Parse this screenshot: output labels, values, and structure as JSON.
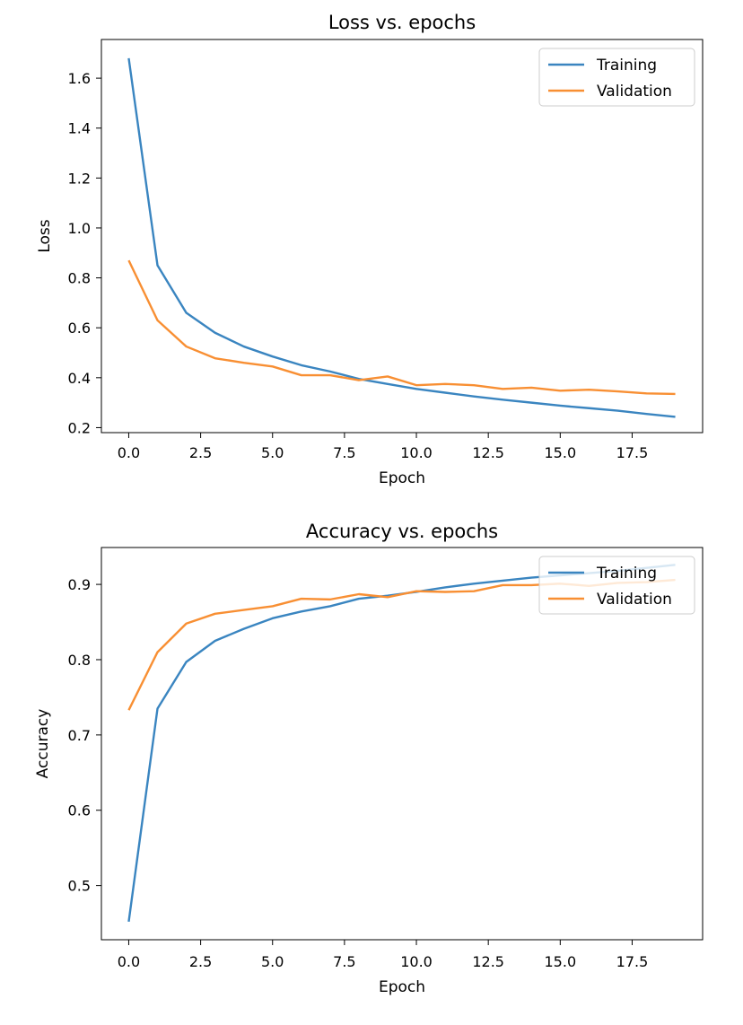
{
  "colors": {
    "training": "#3a85c0",
    "validation": "#f88f33"
  },
  "chart_data": [
    {
      "type": "line",
      "title": "Loss vs. epochs",
      "xlabel": "Epoch",
      "ylabel": "Loss",
      "xlim": [
        -0.95,
        19.95
      ],
      "ylim": [
        0.18,
        1.755
      ],
      "xticks": [
        0,
        2.5,
        5,
        7.5,
        10,
        12.5,
        15,
        17.5
      ],
      "xtick_labels": [
        "0.0",
        "2.5",
        "5.0",
        "7.5",
        "10.0",
        "12.5",
        "15.0",
        "17.5"
      ],
      "yticks": [
        0.2,
        0.4,
        0.6,
        0.8,
        1.0,
        1.2,
        1.4,
        1.6
      ],
      "ytick_labels": [
        "0.2",
        "0.4",
        "0.6",
        "0.8",
        "1.0",
        "1.2",
        "1.4",
        "1.6"
      ],
      "grid": false,
      "legend_position": "upper right",
      "x": [
        0,
        1,
        2,
        3,
        4,
        5,
        6,
        7,
        8,
        9,
        10,
        11,
        12,
        13,
        14,
        15,
        16,
        17,
        18,
        19
      ],
      "series": [
        {
          "name": "Training",
          "color_key": "training",
          "values": [
            1.68,
            0.85,
            0.66,
            0.58,
            0.525,
            0.485,
            0.45,
            0.425,
            0.395,
            0.375,
            0.355,
            0.34,
            0.325,
            0.312,
            0.3,
            0.288,
            0.278,
            0.268,
            0.255,
            0.243
          ]
        },
        {
          "name": "Validation",
          "color_key": "validation",
          "values": [
            0.87,
            0.63,
            0.525,
            0.478,
            0.46,
            0.445,
            0.41,
            0.41,
            0.39,
            0.405,
            0.37,
            0.375,
            0.37,
            0.355,
            0.36,
            0.348,
            0.352,
            0.345,
            0.337,
            0.335
          ]
        }
      ]
    },
    {
      "type": "line",
      "title": "Accuracy vs. epochs",
      "xlabel": "Epoch",
      "ylabel": "Accuracy",
      "xlim": [
        -0.95,
        19.95
      ],
      "ylim": [
        0.428,
        0.949
      ],
      "xticks": [
        0,
        2.5,
        5,
        7.5,
        10,
        12.5,
        15,
        17.5
      ],
      "xtick_labels": [
        "0.0",
        "2.5",
        "5.0",
        "7.5",
        "10.0",
        "12.5",
        "15.0",
        "17.5"
      ],
      "yticks": [
        0.5,
        0.6,
        0.7,
        0.8,
        0.9
      ],
      "ytick_labels": [
        "0.5",
        "0.6",
        "0.7",
        "0.8",
        "0.9"
      ],
      "grid": false,
      "legend_position": "upper right",
      "x": [
        0,
        1,
        2,
        3,
        4,
        5,
        6,
        7,
        8,
        9,
        10,
        11,
        12,
        13,
        14,
        15,
        16,
        17,
        18,
        19
      ],
      "series": [
        {
          "name": "Training",
          "color_key": "training",
          "values": [
            0.452,
            0.735,
            0.797,
            0.825,
            0.841,
            0.855,
            0.864,
            0.871,
            0.881,
            0.885,
            0.89,
            0.896,
            0.901,
            0.905,
            0.909,
            0.912,
            0.915,
            0.918,
            0.922,
            0.926
          ]
        },
        {
          "name": "Validation",
          "color_key": "validation",
          "values": [
            0.733,
            0.81,
            0.848,
            0.861,
            0.866,
            0.871,
            0.881,
            0.88,
            0.887,
            0.883,
            0.891,
            0.89,
            0.891,
            0.899,
            0.899,
            0.901,
            0.898,
            0.902,
            0.903,
            0.906
          ]
        }
      ]
    }
  ]
}
